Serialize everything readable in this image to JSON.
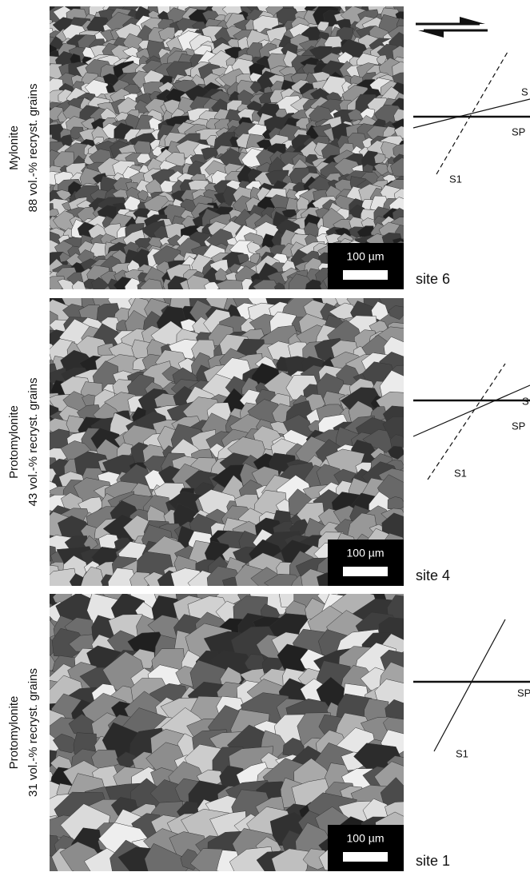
{
  "panels": [
    {
      "rock_type": "Mylonite",
      "description": "88 vol.-% recryst. grains",
      "scale_bar": "100 µm",
      "site": "site 6",
      "diagram": {
        "s": "S",
        "sp": "SP",
        "s1": "S1"
      }
    },
    {
      "rock_type": "Protomylonite",
      "description": "43 vol.-% recryst. grains",
      "scale_bar": "100 µm",
      "site": "site 4",
      "diagram": {
        "s": "S",
        "sp": "SP",
        "s1": "S1"
      }
    },
    {
      "rock_type": "Protomylonite",
      "description": "31 vol.-% recryst. grains",
      "scale_bar": "100 µm",
      "site": "site 1",
      "diagram": {
        "sp": "SP",
        "s1": "S1"
      }
    }
  ]
}
